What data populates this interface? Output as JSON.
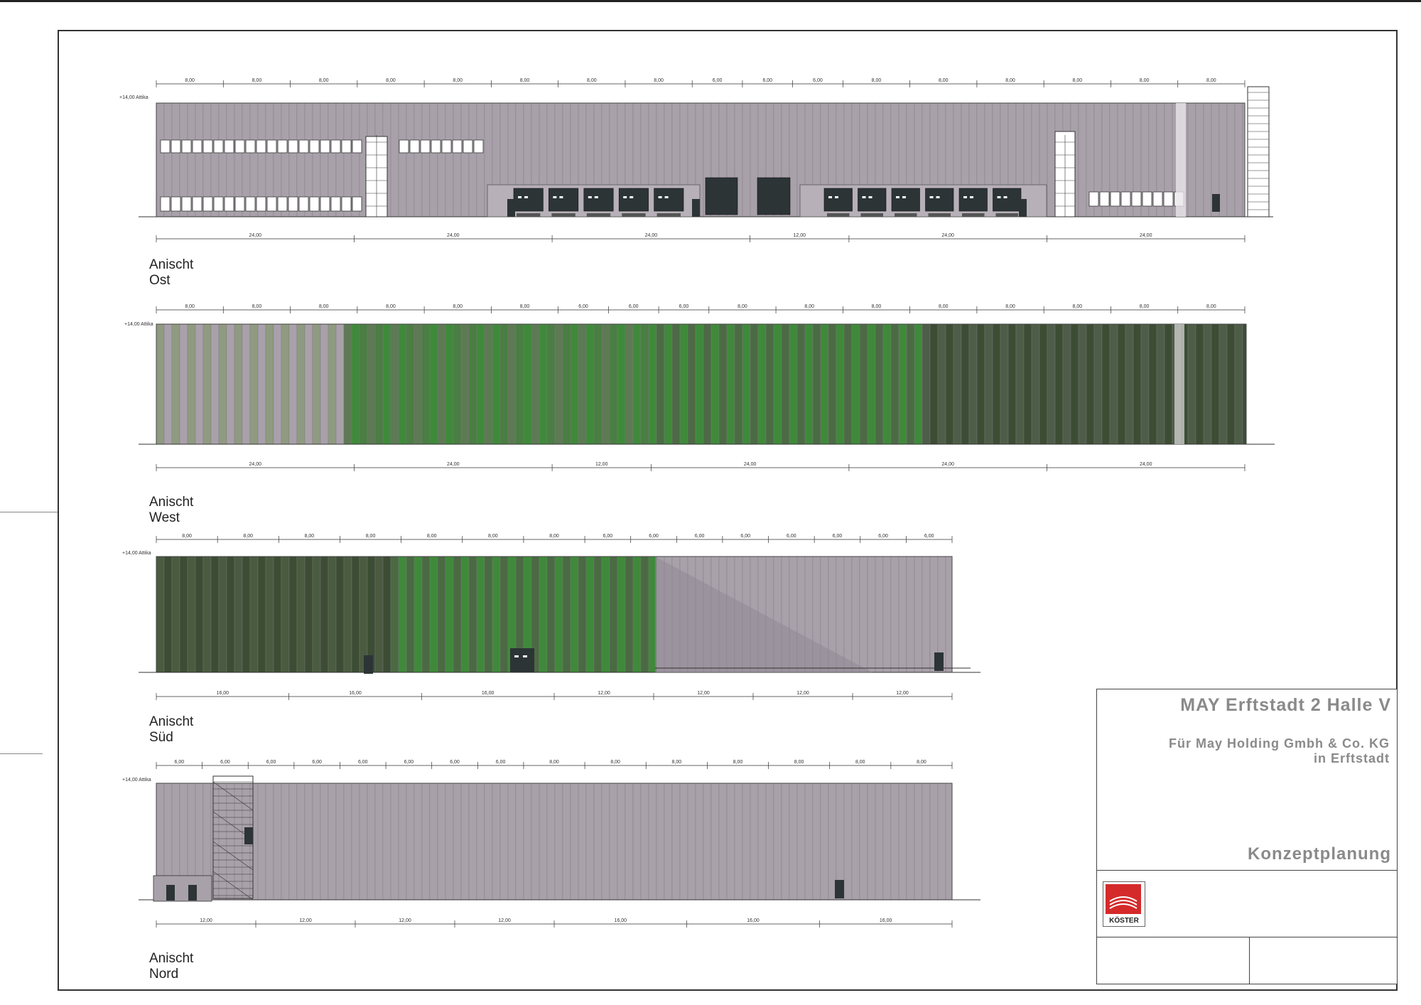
{
  "views": {
    "ost": {
      "label": "Anischt Ost",
      "level": "+14,00 Attika",
      "top_dims": [
        "8,00",
        "8,00",
        "8,00",
        "8,00",
        "8,00",
        "8,00",
        "8,00",
        "8,00",
        "6,00",
        "6,00",
        "6,00",
        "8,00",
        "8,00",
        "8,00",
        "8,00",
        "8,00",
        "8,00"
      ],
      "bottom_dims": [
        "24,00",
        "24,00",
        "24,00",
        "12,00",
        "24,00",
        "24,00"
      ]
    },
    "west": {
      "label": "Anischt West",
      "level": "+14,00 Attika",
      "top_dims": [
        "8,00",
        "8,00",
        "8,00",
        "8,00",
        "8,00",
        "8,00",
        "6,00",
        "6,00",
        "6,00",
        "8,00",
        "8,00",
        "8,00",
        "8,00",
        "8,00",
        "8,00",
        "8,00",
        "8,00"
      ],
      "bottom_dims": [
        "24,00",
        "24,00",
        "12,00",
        "24,00",
        "24,00",
        "24,00"
      ]
    },
    "sued": {
      "label": "Anischt Süd",
      "level": "+14,00 Attika",
      "top_dims": [
        "8,00",
        "8,00",
        "8,00",
        "8,00",
        "8,00",
        "8,00",
        "8,00",
        "6,00",
        "6,00",
        "6,00",
        "6,00",
        "6,00",
        "6,00",
        "6,00",
        "6,00"
      ],
      "bottom_dims": [
        "16,00",
        "16,00",
        "16,00",
        "12,00",
        "12,00",
        "12,00",
        "12,00"
      ]
    },
    "nord": {
      "label": "Anischt Nord",
      "level": "+14,00 Attika",
      "top_dims": [
        "6,00",
        "6,00",
        "6,00",
        "6,00",
        "6,00",
        "6,00",
        "6,00",
        "6,00",
        "8,00",
        "8,00",
        "8,00",
        "8,00",
        "8,00",
        "8,00",
        "8,00"
      ],
      "bottom_dims": [
        "12,00",
        "12,00",
        "12,00",
        "12,00",
        "16,00",
        "16,00",
        "16,00"
      ]
    }
  },
  "titleblock": {
    "project": "MAY Erftstadt 2 Halle V",
    "client_line1": "Für May Holding Gmbh & Co. KG",
    "client_line2": "in Erftstadt",
    "phase": "Konzeptplanung",
    "logo_text": "KÖSTER"
  },
  "colors": {
    "facade_grey": "#a8a0a8",
    "facade_green": "#3f8a3a",
    "facade_dark_green": "#3c4d34",
    "door_dark": "#2c3436",
    "logo_red": "#d42a2a"
  }
}
